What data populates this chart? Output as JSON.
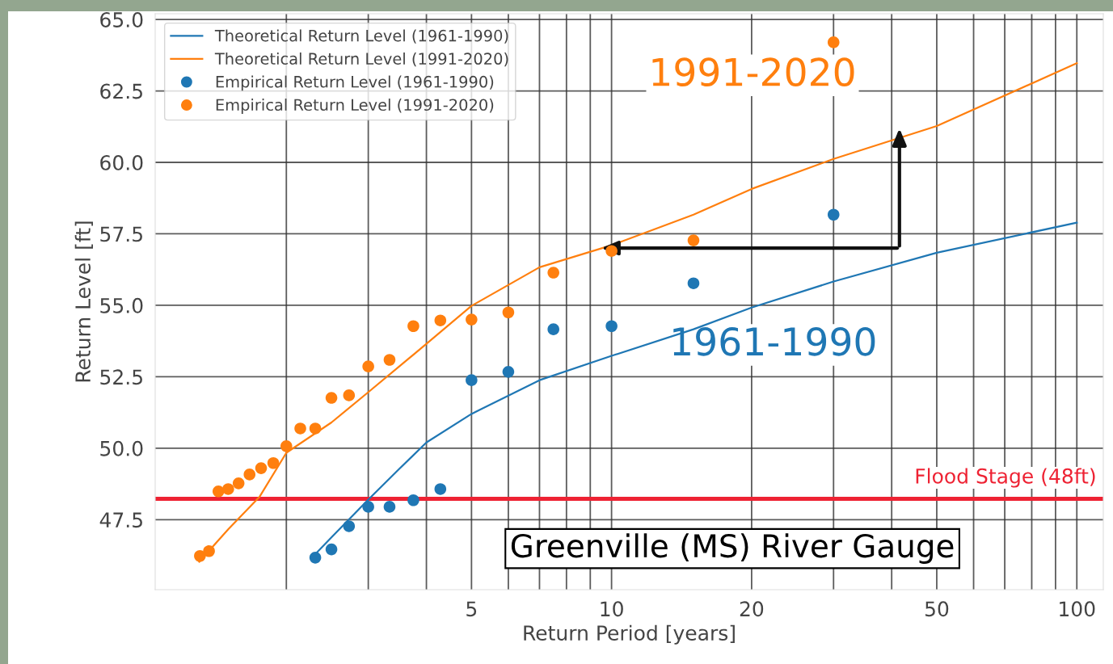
{
  "chart_data": {
    "type": "line",
    "xlabel": "Return Period [years]",
    "ylabel": "Return Level [ft]",
    "log": "x",
    "xlim": [
      1.045,
      114
    ],
    "ylim": [
      45.05,
      65.2
    ],
    "xticks": [
      {
        "value": 2,
        "label": null
      },
      {
        "value": 3,
        "label": null
      },
      {
        "value": 4,
        "label": null
      },
      5,
      {
        "value": 6,
        "label": null
      },
      {
        "value": 7,
        "label": null
      },
      {
        "value": 8,
        "label": null
      },
      {
        "value": 9,
        "label": null
      },
      10,
      20,
      {
        "value": 30,
        "label": null
      },
      {
        "value": 40,
        "label": null
      },
      50,
      {
        "value": 60,
        "label": null
      },
      {
        "value": 70,
        "label": null
      },
      {
        "value": 80,
        "label": null
      },
      {
        "value": 90,
        "label": null
      },
      100
    ],
    "yticks": [
      47.5,
      {
        "value": 50,
        "label": "50.0"
      },
      52.5,
      {
        "value": 55,
        "label": "55.0"
      },
      57.5,
      {
        "value": 60,
        "label": "60.0"
      },
      62.5,
      {
        "value": 65,
        "label": "65.0"
      }
    ],
    "grid": true,
    "legend": "top left",
    "series": [
      {
        "name": "Theoretical Return Level (1961-1990)",
        "color": "#1f77b4",
        "marker": "none",
        "x": [
          2.31,
          2.5,
          3,
          3.5,
          4,
          5,
          7,
          10,
          15,
          20,
          30,
          50,
          100
        ],
        "values": [
          46.3,
          46.88,
          48.2,
          49.28,
          50.2,
          51.2,
          52.38,
          53.23,
          54.16,
          54.92,
          55.83,
          56.84,
          57.89
        ]
      },
      {
        "name": "Theoretical Return Level (1991-2020)",
        "color": "#ff7f0e",
        "marker": "none",
        "x": [
          1.3,
          1.5,
          1.75,
          2,
          2.5,
          3,
          4,
          5,
          7,
          10,
          15,
          20,
          30,
          50,
          100
        ],
        "values": [
          46.03,
          47.16,
          48.29,
          49.84,
          50.9,
          51.96,
          53.65,
          54.98,
          56.33,
          57.1,
          58.17,
          59.07,
          60.12,
          61.27,
          63.47
        ]
      },
      {
        "name": "Empirical Return Level (1961-1990)",
        "type": "scatter",
        "color": "#1f77b4",
        "marker": "circle",
        "x": [
          2.308,
          2.5,
          2.727,
          3,
          3.333,
          3.75,
          4.286,
          5,
          6,
          7.5,
          10,
          15,
          30
        ],
        "values": [
          46.17,
          46.46,
          47.27,
          47.95,
          47.95,
          48.18,
          48.57,
          52.38,
          52.67,
          54.16,
          54.27,
          55.77,
          58.17
        ]
      },
      {
        "name": "Empirical Return Level (1991-2020)",
        "type": "scatter",
        "color": "#ff7f0e",
        "marker": "circle",
        "x": [
          1.304,
          1.364,
          1.429,
          1.5,
          1.579,
          1.667,
          1.765,
          1.875,
          2,
          2.143,
          2.308,
          2.5,
          2.727,
          3,
          3.333,
          3.75,
          4.286,
          5,
          6,
          7.5,
          10,
          15,
          30
        ],
        "values": [
          46.23,
          46.4,
          48.49,
          48.57,
          48.77,
          49.08,
          49.3,
          49.48,
          50.07,
          50.69,
          50.69,
          51.76,
          51.85,
          52.86,
          53.09,
          54.27,
          54.47,
          54.5,
          54.75,
          56.14,
          56.9,
          57.27,
          64.2
        ]
      }
    ],
    "ref_lines": [
      {
        "axis": "y",
        "value": 48.23,
        "label": "Flood Stage (48ft)",
        "color": "#ee2233"
      }
    ],
    "annotations": [
      "1991-2020",
      "1961-1990",
      "Greenville (MS) River Gauge"
    ]
  }
}
